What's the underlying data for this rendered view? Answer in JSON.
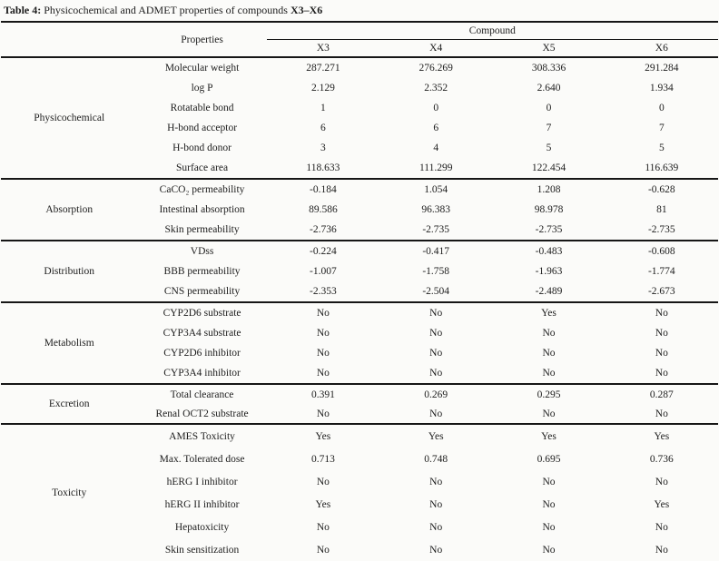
{
  "title": {
    "bold_prefix": "Table 4:",
    "normal_text": " Physicochemical and ADMET properties of compounds ",
    "bold_suffix": "X3–X6"
  },
  "header": {
    "properties_label": "Properties",
    "compound_label": "Compound",
    "compounds": [
      "X3",
      "X4",
      "X5",
      "X6"
    ]
  },
  "sections": [
    {
      "name": "Physicochemical",
      "rows": [
        {
          "property": "Molecular weight",
          "values": [
            "287.271",
            "276.269",
            "308.336",
            "291.284"
          ]
        },
        {
          "property": "log P",
          "values": [
            "2.129",
            "2.352",
            "2.640",
            "1.934"
          ]
        },
        {
          "property": "Rotatable bond",
          "values": [
            "1",
            "0",
            "0",
            "0"
          ]
        },
        {
          "property": "H-bond acceptor",
          "values": [
            "6",
            "6",
            "7",
            "7"
          ]
        },
        {
          "property": "H-bond donor",
          "values": [
            "3",
            "4",
            "5",
            "5"
          ]
        },
        {
          "property": "Surface area",
          "values": [
            "118.633",
            "111.299",
            "122.454",
            "116.639"
          ]
        }
      ]
    },
    {
      "name": "Absorption",
      "rows": [
        {
          "property": "CaCO₂ permeability",
          "values": [
            "-0.184",
            "1.054",
            "1.208",
            "-0.628"
          ]
        },
        {
          "property": "Intestinal absorption",
          "values": [
            "89.586",
            "96.383",
            "98.978",
            "81"
          ]
        },
        {
          "property": "Skin permeability",
          "values": [
            "-2.736",
            "-2.735",
            "-2.735",
            "-2.735"
          ]
        }
      ]
    },
    {
      "name": "Distribution",
      "rows": [
        {
          "property": "VDss",
          "values": [
            "-0.224",
            "-0.417",
            "-0.483",
            "-0.608"
          ]
        },
        {
          "property": "BBB permeability",
          "values": [
            "-1.007",
            "-1.758",
            "-1.963",
            "-1.774"
          ]
        },
        {
          "property": "CNS permeability",
          "values": [
            "-2.353",
            "-2.504",
            "-2.489",
            "-2.673"
          ]
        }
      ]
    },
    {
      "name": "Metabolism",
      "rows": [
        {
          "property": "CYP2D6 substrate",
          "values": [
            "No",
            "No",
            "Yes",
            "No"
          ]
        },
        {
          "property": "CYP3A4 substrate",
          "values": [
            "No",
            "No",
            "No",
            "No"
          ]
        },
        {
          "property": "CYP2D6 inhibitor",
          "values": [
            "No",
            "No",
            "No",
            "No"
          ]
        },
        {
          "property": "CYP3A4 inhibitor",
          "values": [
            "No",
            "No",
            "No",
            "No"
          ]
        }
      ]
    },
    {
      "name": "Excretion",
      "rows": [
        {
          "property": "Total clearance",
          "values": [
            "0.391",
            "0.269",
            "0.295",
            "0.287"
          ]
        },
        {
          "property": "Renal OCT2 substrate",
          "values": [
            "No",
            "No",
            "No",
            "No"
          ]
        }
      ]
    },
    {
      "name": "Toxicity",
      "rows": [
        {
          "property": "AMES Toxicity",
          "values": [
            "Yes",
            "Yes",
            "Yes",
            "Yes"
          ]
        },
        {
          "property": "Max. Tolerated dose",
          "values": [
            "0.713",
            "0.748",
            "0.695",
            "0.736"
          ]
        },
        {
          "property": "hERG I inhibitor",
          "values": [
            "No",
            "No",
            "No",
            "No"
          ]
        },
        {
          "property": "hERG II inhibitor",
          "values": [
            "Yes",
            "No",
            "No",
            "Yes"
          ]
        },
        {
          "property": "Hepatoxicity",
          "values": [
            "No",
            "No",
            "No",
            "No"
          ]
        },
        {
          "property": "Skin sensitization",
          "values": [
            "No",
            "No",
            "No",
            "No"
          ]
        }
      ]
    }
  ]
}
